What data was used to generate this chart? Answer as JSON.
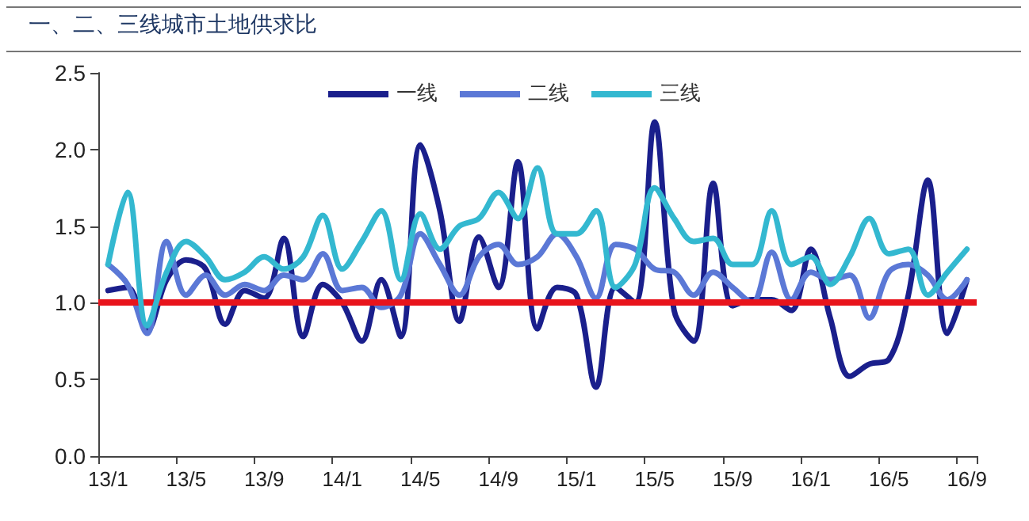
{
  "chart_data": {
    "type": "line",
    "title": "一、二、三线城市土地供求比",
    "categories": [
      "13/1",
      null,
      null,
      null,
      "13/5",
      null,
      null,
      null,
      "13/9",
      null,
      null,
      null,
      "14/1",
      null,
      null,
      null,
      "14/5",
      null,
      null,
      null,
      "14/9",
      null,
      null,
      null,
      "15/1",
      null,
      null,
      null,
      "15/5",
      null,
      null,
      null,
      "15/9",
      null,
      null,
      null,
      "16/1",
      null,
      null,
      null,
      "16/5",
      null,
      null,
      null,
      "16/9"
    ],
    "series": [
      {
        "name": "一线",
        "color": "#1a1f8c",
        "values": [
          1.08,
          1.1,
          0.82,
          1.15,
          1.28,
          1.22,
          0.86,
          1.08,
          1.03,
          1.42,
          0.78,
          1.12,
          1.0,
          0.75,
          1.15,
          0.78,
          2.03,
          1.6,
          0.88,
          1.43,
          1.1,
          1.92,
          0.83,
          1.1,
          1.05,
          0.45,
          1.1,
          1.0,
          2.18,
          0.95,
          0.75,
          1.78,
          0.98,
          1.02,
          1.02,
          0.95,
          1.35,
          0.9,
          0.52,
          0.6,
          0.63,
          1.05,
          1.8,
          0.8,
          1.15
        ]
      },
      {
        "name": "二线",
        "color": "#5b78d6",
        "values": [
          1.25,
          1.12,
          0.8,
          1.4,
          1.05,
          1.18,
          1.05,
          1.12,
          1.08,
          1.18,
          1.15,
          1.32,
          1.08,
          1.1,
          0.97,
          1.05,
          1.45,
          1.25,
          1.05,
          1.3,
          1.38,
          1.25,
          1.3,
          1.45,
          1.3,
          1.03,
          1.38,
          1.35,
          1.22,
          1.2,
          1.05,
          1.2,
          1.1,
          1.0,
          1.33,
          1.02,
          1.2,
          1.15,
          1.18,
          0.9,
          1.2,
          1.25,
          1.18,
          1.02,
          1.15
        ]
      },
      {
        "name": "三线",
        "color": "#33b8d0",
        "values": [
          1.25,
          1.72,
          0.85,
          1.2,
          1.4,
          1.3,
          1.15,
          1.2,
          1.3,
          1.22,
          1.3,
          1.57,
          1.22,
          1.4,
          1.6,
          1.15,
          1.58,
          1.35,
          1.5,
          1.55,
          1.72,
          1.55,
          1.88,
          1.45,
          1.45,
          1.6,
          1.1,
          1.25,
          1.75,
          1.55,
          1.4,
          1.42,
          1.25,
          1.25,
          1.6,
          1.25,
          1.3,
          1.12,
          1.3,
          1.55,
          1.32,
          1.35,
          1.05,
          1.2,
          1.35
        ]
      }
    ],
    "ylim": [
      0,
      2.5
    ],
    "yticks": [
      {
        "value": 0,
        "label": "0.0"
      },
      {
        "value": 0.5,
        "label": "0.5"
      },
      {
        "value": 1,
        "label": "1.0"
      },
      {
        "value": 1.5,
        "label": "1.5"
      },
      {
        "value": 2,
        "label": "2.0"
      },
      {
        "value": 2.5,
        "label": "2.5"
      }
    ],
    "ref_lines": [
      {
        "axis": "y",
        "value": 1,
        "color": "#e8141c"
      }
    ],
    "legend": "top",
    "grid": false,
    "marker": "none",
    "line_style": "solid"
  }
}
